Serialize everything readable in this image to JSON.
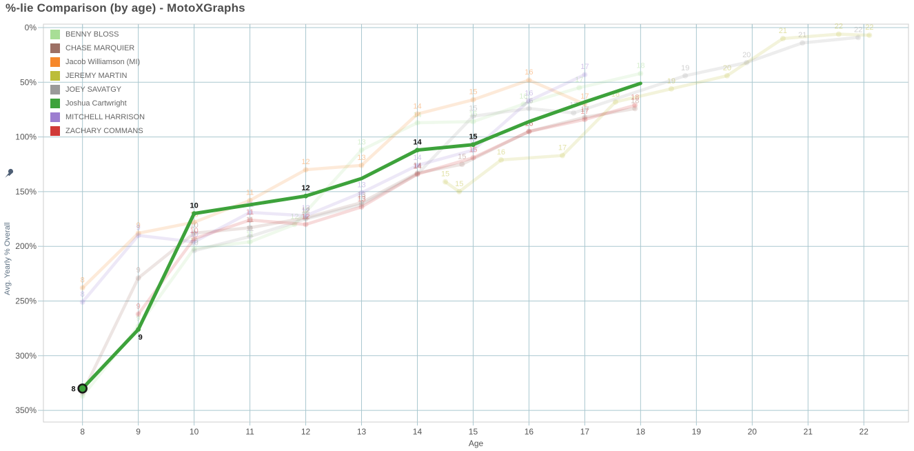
{
  "chart_data": {
    "type": "line",
    "title": "%-lie Comparison (by age) - MotoXGraphs",
    "xlabel": "Age",
    "ylabel": "Avg. Yearly % Overall",
    "x_axis": {
      "min": 7.3,
      "max": 22.8,
      "tick_labels": [
        "8",
        "9",
        "10",
        "11",
        "12",
        "13",
        "14",
        "15",
        "16",
        "17",
        "18",
        "19",
        "20",
        "21",
        "22"
      ],
      "tick_values": [
        8,
        9,
        10,
        11,
        12,
        13,
        14,
        15,
        16,
        17,
        18,
        19,
        20,
        21,
        22
      ]
    },
    "y_axis": {
      "min": 0,
      "max": 350,
      "step": 50,
      "inverted": true,
      "tick_labels": [
        "0%",
        "50%",
        "100%",
        "150%",
        "200%",
        "250%",
        "300%",
        "350%"
      ],
      "tick_values": [
        0,
        50,
        100,
        150,
        200,
        250,
        300,
        350
      ]
    },
    "grid": true,
    "legend_position": "top-left-inside",
    "colors": {
      "grid": "#a9c7cf",
      "border": "#cccccc",
      "axis_text": "#555555",
      "highlight_label": "#111111",
      "title": "#4d4d4d"
    },
    "series": [
      {
        "name": "BENNY BLOSS",
        "slug": "benny-bloss",
        "color": "#a8de96",
        "highlighted": false,
        "points": [
          [
            8,
            337,
            "8"
          ],
          [
            9,
            273,
            "9"
          ],
          [
            10,
            202,
            "10"
          ],
          [
            11,
            196,
            "11"
          ],
          [
            11.8,
            180,
            "12"
          ],
          [
            13,
            112,
            "13"
          ],
          [
            14,
            87,
            "14"
          ],
          [
            15,
            86,
            "15"
          ],
          [
            15.9,
            70,
            "16"
          ],
          [
            16.9,
            55,
            "17"
          ],
          [
            18,
            42,
            "18"
          ]
        ]
      },
      {
        "name": "CHASE MARQUIER",
        "slug": "chase-marquier",
        "color": "#9d7065",
        "highlighted": false,
        "points": [
          [
            8,
            334,
            null
          ],
          [
            9,
            229,
            "9"
          ],
          [
            10,
            188,
            "10"
          ],
          [
            11,
            183,
            "11"
          ],
          [
            12,
            174,
            "12"
          ],
          [
            13,
            160,
            "13"
          ],
          [
            14,
            133,
            "14"
          ],
          [
            14.8,
            125,
            "15"
          ],
          [
            16,
            95,
            "16"
          ],
          [
            17,
            82,
            "17"
          ],
          [
            17.9,
            74,
            "18"
          ]
        ]
      },
      {
        "name": "Jacob Williamson (MI)",
        "slug": "jacob-williamson",
        "color": "#f6882c",
        "highlighted": false,
        "points": [
          [
            8,
            238,
            "8"
          ],
          [
            9,
            188,
            "9"
          ],
          [
            10,
            178,
            "10"
          ],
          [
            11,
            158,
            "11"
          ],
          [
            12,
            130,
            "12"
          ],
          [
            13,
            126,
            "13"
          ],
          [
            14,
            79,
            "14"
          ],
          [
            15,
            66,
            "15"
          ],
          [
            16,
            48,
            "16"
          ],
          [
            17,
            70,
            "17"
          ]
        ]
      },
      {
        "name": "JEREMY MARTIN",
        "slug": "jeremy-martin",
        "color": "#bcbd3a",
        "highlighted": false,
        "points": [
          [
            14.5,
            141,
            "15"
          ],
          [
            14.75,
            150,
            "15"
          ],
          [
            15.5,
            121,
            "16"
          ],
          [
            16.6,
            117,
            "17"
          ],
          [
            17.55,
            68,
            "18"
          ],
          [
            18.55,
            56,
            "19"
          ],
          [
            19.55,
            44,
            "20"
          ],
          [
            20.55,
            10,
            "21"
          ],
          [
            21.55,
            6,
            "22"
          ],
          [
            22.1,
            7,
            "22"
          ]
        ]
      },
      {
        "name": "JOEY SAVATGY",
        "slug": "joey-savatgy",
        "color": "#9a9a9a",
        "highlighted": false,
        "points": [
          [
            10,
            204,
            "10"
          ],
          [
            11,
            191,
            "11"
          ],
          [
            12,
            175,
            "12"
          ],
          [
            13,
            162,
            "13"
          ],
          [
            14,
            134,
            "14"
          ],
          [
            15,
            81,
            "15"
          ],
          [
            16,
            74,
            "16"
          ],
          [
            16.8,
            78,
            "17"
          ],
          [
            18.8,
            44,
            "19"
          ],
          [
            19.9,
            32,
            "20"
          ],
          [
            20.9,
            14,
            "21"
          ],
          [
            21.9,
            9,
            "22"
          ]
        ]
      },
      {
        "name": "Joshua Cartwright",
        "slug": "joshua-cartwright",
        "color": "#3da23b",
        "highlighted": true,
        "points": [
          [
            8,
            330,
            "8",
            "l"
          ],
          [
            9,
            276,
            "9",
            "b"
          ],
          [
            10,
            170,
            "10"
          ],
          [
            11,
            162,
            null
          ],
          [
            12,
            154,
            "12"
          ],
          [
            13,
            138,
            null
          ],
          [
            14,
            112,
            "14"
          ],
          [
            15,
            107,
            "15"
          ],
          [
            16,
            86,
            null
          ],
          [
            17,
            68,
            null
          ],
          [
            18,
            51,
            null
          ]
        ]
      },
      {
        "name": "MITCHELL HARRISON",
        "slug": "mitchell-harrison",
        "color": "#9d7ed0",
        "highlighted": false,
        "points": [
          [
            8,
            251,
            "8"
          ],
          [
            9,
            190,
            "9"
          ],
          [
            10,
            196,
            "10"
          ],
          [
            11,
            169,
            "11"
          ],
          [
            12,
            172,
            "12"
          ],
          [
            13,
            151,
            "13"
          ],
          [
            14,
            126,
            "14"
          ],
          [
            15,
            112,
            "15"
          ],
          [
            16,
            67,
            "16"
          ],
          [
            17,
            43,
            "17"
          ]
        ]
      },
      {
        "name": "ZACHARY COMMANS",
        "slug": "zachary-commans",
        "color": "#d03a38",
        "highlighted": false,
        "points": [
          [
            9,
            262,
            "9"
          ],
          [
            10,
            193,
            "10"
          ],
          [
            11,
            176,
            "11"
          ],
          [
            12,
            180,
            "12"
          ],
          [
            13,
            164,
            "13"
          ],
          [
            14,
            134,
            "14"
          ],
          [
            15,
            119,
            "15"
          ],
          [
            16,
            95,
            "16"
          ],
          [
            17,
            84,
            "17"
          ],
          [
            17.9,
            71,
            "18"
          ]
        ]
      }
    ]
  }
}
